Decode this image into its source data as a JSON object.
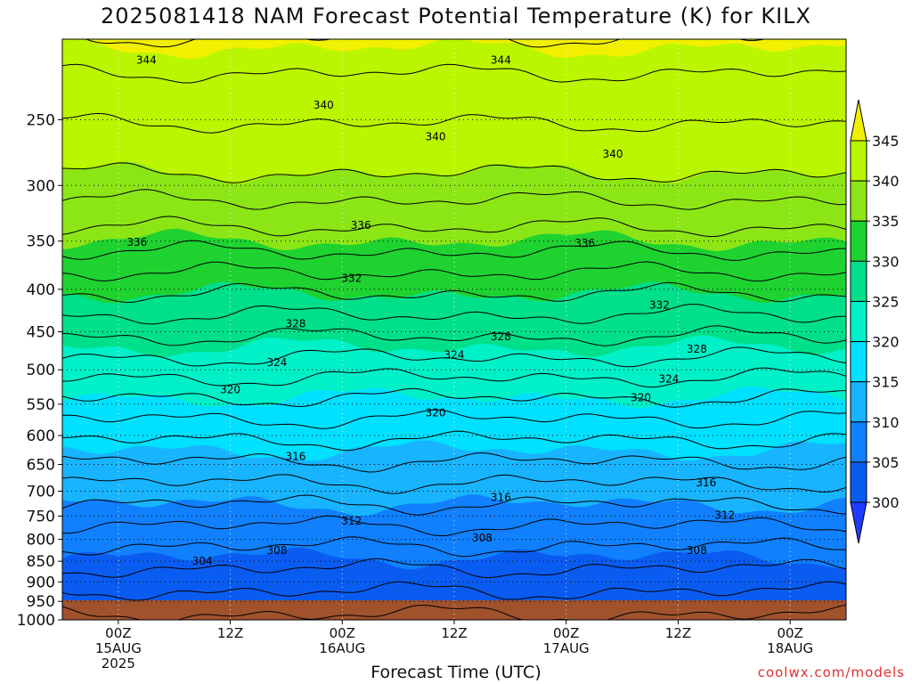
{
  "header": {
    "title": "2025081418 NAM Forecast Potential Temperature (K) for KILX"
  },
  "footer": {
    "credit": "coolwx.com/models"
  },
  "chart_data": {
    "type": "heatmap",
    "title": "2025081418 NAM Forecast Potential Temperature (K) for KILX",
    "xlabel": "Forecast Time (UTC)",
    "ylabel": "",
    "y_ticks": [
      250,
      300,
      350,
      400,
      450,
      500,
      550,
      600,
      650,
      700,
      750,
      800,
      850,
      900,
      950,
      1000
    ],
    "y_range": [
      200,
      1000
    ],
    "y_reversed": true,
    "x_ticks": [
      {
        "hour": 6,
        "line1": "00Z",
        "line2": "15AUG",
        "line3": "2025"
      },
      {
        "hour": 18,
        "line1": "12Z",
        "line2": "",
        "line3": ""
      },
      {
        "hour": 30,
        "line1": "00Z",
        "line2": "16AUG",
        "line3": ""
      },
      {
        "hour": 42,
        "line1": "12Z",
        "line2": "",
        "line3": ""
      },
      {
        "hour": 54,
        "line1": "00Z",
        "line2": "17AUG",
        "line3": ""
      },
      {
        "hour": 66,
        "line1": "12Z",
        "line2": "",
        "line3": ""
      },
      {
        "hour": 78,
        "line1": "00Z",
        "line2": "18AUG",
        "line3": ""
      }
    ],
    "x_range": [
      0,
      84
    ],
    "grid": true,
    "colorbar": {
      "labels": [
        300,
        305,
        310,
        315,
        320,
        325,
        330,
        335,
        340,
        345
      ],
      "colors": [
        "#1e3cff",
        "#0a5cf0",
        "#1080ff",
        "#18b4ff",
        "#00e0ff",
        "#00f0c8",
        "#00e08a",
        "#1ed230",
        "#8ce616",
        "#baf600",
        "#f0f000"
      ]
    },
    "contour_labels": [
      {
        "text": "344",
        "hour": 9,
        "p": 212
      },
      {
        "text": "344",
        "hour": 47,
        "p": 212
      },
      {
        "text": "340",
        "hour": 28,
        "p": 240
      },
      {
        "text": "340",
        "hour": 40,
        "p": 262
      },
      {
        "text": "340",
        "hour": 59,
        "p": 275
      },
      {
        "text": "336",
        "hour": 8,
        "p": 351
      },
      {
        "text": "336",
        "hour": 32,
        "p": 335
      },
      {
        "text": "336",
        "hour": 56,
        "p": 352
      },
      {
        "text": "332",
        "hour": 31,
        "p": 388
      },
      {
        "text": "332",
        "hour": 64,
        "p": 418
      },
      {
        "text": "328",
        "hour": 25,
        "p": 440
      },
      {
        "text": "328",
        "hour": 47,
        "p": 456
      },
      {
        "text": "328",
        "hour": 68,
        "p": 472
      },
      {
        "text": "324",
        "hour": 23,
        "p": 490
      },
      {
        "text": "324",
        "hour": 42,
        "p": 480
      },
      {
        "text": "324",
        "hour": 65,
        "p": 513
      },
      {
        "text": "320",
        "hour": 18,
        "p": 528
      },
      {
        "text": "320",
        "hour": 40,
        "p": 563
      },
      {
        "text": "320",
        "hour": 62,
        "p": 540
      },
      {
        "text": "316",
        "hour": 25,
        "p": 636
      },
      {
        "text": "316",
        "hour": 47,
        "p": 712
      },
      {
        "text": "316",
        "hour": 69,
        "p": 684
      },
      {
        "text": "312",
        "hour": 31,
        "p": 760
      },
      {
        "text": "312",
        "hour": 71,
        "p": 748
      },
      {
        "text": "308",
        "hour": 23,
        "p": 825
      },
      {
        "text": "308",
        "hour": 45,
        "p": 797
      },
      {
        "text": "308",
        "hour": 68,
        "p": 825
      },
      {
        "text": "304",
        "hour": 15,
        "p": 850
      }
    ]
  }
}
